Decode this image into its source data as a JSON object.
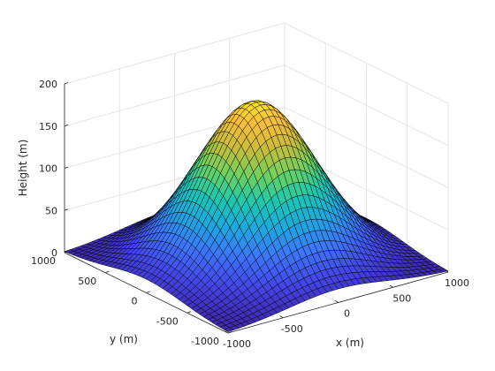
{
  "chart_data": {
    "type": "surface",
    "title": "",
    "xlabel": "x (m)",
    "ylabel": "y (m)",
    "zlabel": "Height (m)",
    "xlim": [
      -1000,
      1000
    ],
    "ylim": [
      -1000,
      1000
    ],
    "zlim": [
      0,
      200
    ],
    "x_ticks": [
      "-1000",
      "-500",
      "0",
      "500",
      "1000"
    ],
    "x_tick_values": [
      -1000,
      -500,
      0,
      500,
      1000
    ],
    "y_ticks": [
      "-1000",
      "-500",
      "0",
      "500",
      "1000"
    ],
    "y_tick_values": [
      -1000,
      -500,
      0,
      500,
      1000
    ],
    "z_ticks": [
      "0",
      "50",
      "100",
      "150",
      "200"
    ],
    "z_tick_values": [
      0,
      50,
      100,
      150,
      200
    ],
    "surface": {
      "shape": "gaussian",
      "peak_height": 190,
      "center": [
        0,
        0
      ],
      "sigma": 450,
      "grid_points": 40,
      "edge_color": "#000000"
    },
    "colormap": [
      "#3e26a8",
      "#4445e7",
      "#3d75fb",
      "#1fa7e0",
      "#1ac7b1",
      "#6bd162",
      "#c5bc3b",
      "#fbbd3d",
      "#f9fb15"
    ],
    "grid": true,
    "box": false
  }
}
